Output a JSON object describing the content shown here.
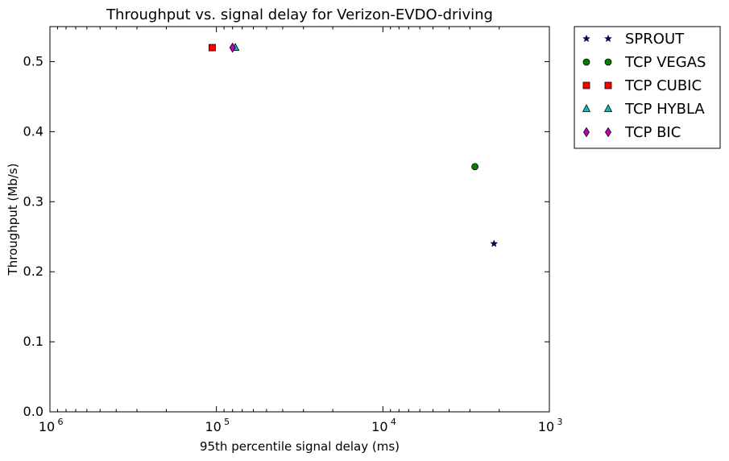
{
  "chart_data": {
    "type": "scatter",
    "title": "Throughput vs. signal delay for Verizon-EVDO-driving",
    "xlabel": "95th percentile signal delay (ms)",
    "ylabel": "Throughput (Mb/s)",
    "x_scale": "log",
    "x_reversed": true,
    "xlim": [
      1000000,
      1000
    ],
    "ylim": [
      0.0,
      0.55
    ],
    "x_ticks": [
      {
        "value": 1000000,
        "label": "10",
        "exp": "6"
      },
      {
        "value": 100000,
        "label": "10",
        "exp": "5"
      },
      {
        "value": 10000,
        "label": "10",
        "exp": "4"
      },
      {
        "value": 1000,
        "label": "10",
        "exp": "3"
      }
    ],
    "y_ticks": [
      "0.0",
      "0.1",
      "0.2",
      "0.3",
      "0.4",
      "0.5"
    ],
    "grid": false,
    "legend_position": "outside right",
    "series": [
      {
        "name": "SPROUT",
        "marker": "star",
        "color": "#000080",
        "x": [
          2150
        ],
        "y": [
          0.24
        ]
      },
      {
        "name": "TCP VEGAS",
        "marker": "circle",
        "color": "#008000",
        "x": [
          2800
        ],
        "y": [
          0.35
        ]
      },
      {
        "name": "TCP CUBIC",
        "marker": "square",
        "color": "#ff0000",
        "x": [
          106000
        ],
        "y": [
          0.52
        ]
      },
      {
        "name": "TCP HYBLA",
        "marker": "triangle",
        "color": "#00bfbf",
        "x": [
          77000
        ],
        "y": [
          0.52
        ]
      },
      {
        "name": "TCP BIC",
        "marker": "diamond",
        "color": "#bf00bf",
        "x": [
          80000
        ],
        "y": [
          0.52
        ]
      }
    ]
  }
}
